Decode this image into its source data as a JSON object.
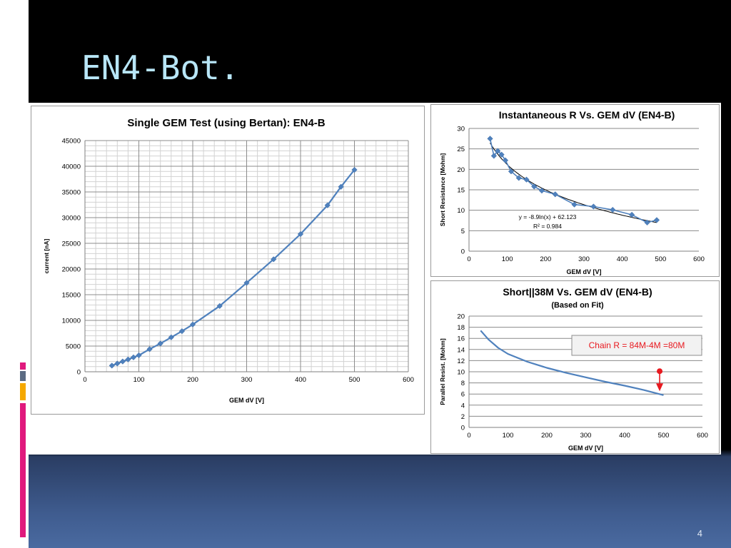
{
  "slide": {
    "title": "EN4-Bot.",
    "page_number": "4"
  },
  "chart_data": [
    {
      "type": "line",
      "title": "Single GEM Test (using Bertan): EN4-B",
      "xlabel": "GEM dV [V]",
      "ylabel": "current [nA]",
      "xlim": [
        0,
        600
      ],
      "ylim": [
        0,
        45000
      ],
      "xticks": [
        0,
        100,
        200,
        300,
        400,
        500,
        600
      ],
      "yticks": [
        0,
        5000,
        10000,
        15000,
        20000,
        25000,
        30000,
        35000,
        40000,
        45000
      ],
      "grid": true,
      "series": [
        {
          "x": [
            50,
            60,
            70,
            80,
            90,
            100,
            120,
            140,
            160,
            180,
            200,
            250,
            300,
            350,
            400,
            450,
            475,
            500
          ],
          "values": [
            1200,
            1600,
            2000,
            2400,
            2800,
            3200,
            4400,
            5500,
            6700,
            7900,
            9200,
            12800,
            17300,
            21900,
            26800,
            32400,
            36000,
            39300
          ],
          "color": "#4f81bd"
        }
      ]
    },
    {
      "type": "scatter",
      "title": "Instantaneous R Vs. GEM dV (EN4-B)",
      "xlabel": "GEM dV [V]",
      "ylabel": "Short Resistance  [Mohm]",
      "xlim": [
        0,
        600
      ],
      "ylim": [
        0,
        30
      ],
      "xticks": [
        0,
        100,
        200,
        300,
        400,
        500,
        600
      ],
      "yticks": [
        0,
        5,
        10,
        15,
        20,
        25,
        30
      ],
      "grid": true,
      "annotations": [
        "y = -8.9ln(x) + 62.123",
        "R² = 0.984"
      ],
      "series": [
        {
          "x": [
            55,
            65,
            75,
            85,
            95,
            110,
            130,
            150,
            170,
            190,
            225,
            275,
            325,
            375,
            425,
            465,
            490
          ],
          "values": [
            27.5,
            23.3,
            24.5,
            23.6,
            22.2,
            19.5,
            17.9,
            17.5,
            15.8,
            14.8,
            13.9,
            11.4,
            10.9,
            10.1,
            8.9,
            7.0,
            7.6
          ],
          "color": "#4f81bd"
        }
      ],
      "fit": {
        "a": -8.9,
        "b": 62.123,
        "color": "#000000"
      }
    },
    {
      "type": "line",
      "title": "Short||38M Vs. GEM dV (EN4-B)",
      "subtitle": "(Based on Fit)",
      "xlabel": "GEM dV [V]",
      "ylabel": "Parallel Resist. [Mohm]",
      "xlim": [
        0,
        600
      ],
      "ylim": [
        0,
        20
      ],
      "xticks": [
        0,
        100,
        200,
        300,
        400,
        500,
        600
      ],
      "yticks": [
        0,
        2,
        4,
        6,
        8,
        10,
        12,
        14,
        16,
        18,
        20
      ],
      "grid": true,
      "annotation_box": "Chain R = 84M-4M =80M",
      "marker": {
        "x": 490,
        "y": 10.1,
        "color": "#e8191f"
      },
      "series": [
        {
          "x": [
            30,
            50,
            75,
            100,
            150,
            200,
            250,
            300,
            350,
            400,
            450,
            500
          ],
          "values": [
            17.4,
            15.8,
            14.3,
            13.2,
            11.8,
            10.7,
            9.8,
            9.0,
            8.2,
            7.5,
            6.7,
            5.8
          ],
          "color": "#4f81bd"
        }
      ]
    }
  ]
}
